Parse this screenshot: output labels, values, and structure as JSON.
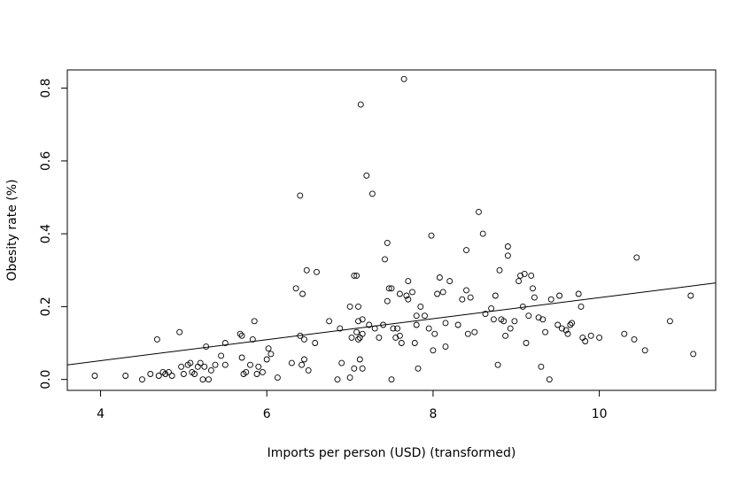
{
  "chart_data": {
    "type": "scatter",
    "title": "",
    "xlabel": "Imports per person (USD) (transformed)",
    "ylabel": "Obesity rate (%)",
    "xlim": [
      3.6,
      11.4
    ],
    "ylim": [
      -0.03,
      0.85
    ],
    "x_ticks": [
      4,
      6,
      8,
      10
    ],
    "y_ticks": [
      0.0,
      0.2,
      0.4,
      0.6,
      0.8
    ],
    "x_tick_labels": [
      "4",
      "6",
      "8",
      "10"
    ],
    "y_tick_labels": [
      "0.0",
      "0.2",
      "0.4",
      "0.6",
      "0.8"
    ],
    "grid": false,
    "legend": "none",
    "colors": {
      "points": "#000000",
      "line": "#000000",
      "frame": "#000000"
    },
    "trend_line": {
      "x": [
        3.6,
        11.4
      ],
      "y": [
        0.04,
        0.265
      ]
    },
    "points": [
      [
        3.93,
        0.01
      ],
      [
        4.3,
        0.01
      ],
      [
        4.5,
        0.0
      ],
      [
        4.6,
        0.015
      ],
      [
        4.68,
        0.11
      ],
      [
        4.7,
        0.01
      ],
      [
        4.75,
        0.02
      ],
      [
        4.78,
        0.015
      ],
      [
        4.82,
        0.02
      ],
      [
        4.86,
        0.01
      ],
      [
        4.95,
        0.13
      ],
      [
        4.97,
        0.035
      ],
      [
        5.0,
        0.015
      ],
      [
        5.05,
        0.04
      ],
      [
        5.08,
        0.045
      ],
      [
        5.1,
        0.02
      ],
      [
        5.13,
        0.015
      ],
      [
        5.17,
        0.035
      ],
      [
        5.2,
        0.045
      ],
      [
        5.23,
        0.0
      ],
      [
        5.25,
        0.035
      ],
      [
        5.27,
        0.09
      ],
      [
        5.3,
        0.0
      ],
      [
        5.33,
        0.025
      ],
      [
        5.38,
        0.04
      ],
      [
        5.45,
        0.065
      ],
      [
        5.5,
        0.1
      ],
      [
        5.5,
        0.04
      ],
      [
        5.68,
        0.125
      ],
      [
        5.7,
        0.06
      ],
      [
        5.7,
        0.12
      ],
      [
        5.72,
        0.015
      ],
      [
        5.75,
        0.02
      ],
      [
        5.8,
        0.04
      ],
      [
        5.83,
        0.11
      ],
      [
        5.85,
        0.16
      ],
      [
        5.88,
        0.015
      ],
      [
        5.9,
        0.035
      ],
      [
        5.95,
        0.02
      ],
      [
        6.0,
        0.055
      ],
      [
        6.02,
        0.085
      ],
      [
        6.05,
        0.07
      ],
      [
        6.13,
        0.005
      ],
      [
        6.3,
        0.045
      ],
      [
        6.35,
        0.25
      ],
      [
        6.4,
        0.505
      ],
      [
        6.4,
        0.12
      ],
      [
        6.42,
        0.04
      ],
      [
        6.43,
        0.235
      ],
      [
        6.45,
        0.11
      ],
      [
        6.45,
        0.055
      ],
      [
        6.48,
        0.3
      ],
      [
        6.5,
        0.025
      ],
      [
        6.58,
        0.1
      ],
      [
        6.6,
        0.295
      ],
      [
        6.75,
        0.16
      ],
      [
        6.85,
        0.0
      ],
      [
        6.88,
        0.14
      ],
      [
        6.9,
        0.045
      ],
      [
        7.0,
        0.005
      ],
      [
        7.0,
        0.2
      ],
      [
        7.02,
        0.115
      ],
      [
        7.05,
        0.285
      ],
      [
        7.05,
        0.03
      ],
      [
        7.08,
        0.13
      ],
      [
        7.08,
        0.285
      ],
      [
        7.1,
        0.11
      ],
      [
        7.1,
        0.2
      ],
      [
        7.1,
        0.16
      ],
      [
        7.12,
        0.055
      ],
      [
        7.12,
        0.115
      ],
      [
        7.13,
        0.755
      ],
      [
        7.15,
        0.165
      ],
      [
        7.15,
        0.125
      ],
      [
        7.15,
        0.03
      ],
      [
        7.2,
        0.56
      ],
      [
        7.23,
        0.15
      ],
      [
        7.27,
        0.51
      ],
      [
        7.3,
        0.14
      ],
      [
        7.35,
        0.115
      ],
      [
        7.4,
        0.15
      ],
      [
        7.42,
        0.33
      ],
      [
        7.45,
        0.375
      ],
      [
        7.45,
        0.215
      ],
      [
        7.47,
        0.25
      ],
      [
        7.5,
        0.25
      ],
      [
        7.5,
        0.0
      ],
      [
        7.52,
        0.14
      ],
      [
        7.55,
        0.115
      ],
      [
        7.57,
        0.14
      ],
      [
        7.6,
        0.235
      ],
      [
        7.6,
        0.12
      ],
      [
        7.62,
        0.1
      ],
      [
        7.65,
        0.825
      ],
      [
        7.68,
        0.23
      ],
      [
        7.7,
        0.27
      ],
      [
        7.7,
        0.22
      ],
      [
        7.75,
        0.24
      ],
      [
        7.78,
        0.1
      ],
      [
        7.8,
        0.175
      ],
      [
        7.8,
        0.15
      ],
      [
        7.82,
        0.03
      ],
      [
        7.85,
        0.2
      ],
      [
        7.9,
        0.175
      ],
      [
        7.95,
        0.14
      ],
      [
        7.98,
        0.395
      ],
      [
        8.0,
        0.08
      ],
      [
        8.02,
        0.125
      ],
      [
        8.05,
        0.235
      ],
      [
        8.08,
        0.28
      ],
      [
        8.12,
        0.24
      ],
      [
        8.15,
        0.155
      ],
      [
        8.15,
        0.09
      ],
      [
        8.2,
        0.27
      ],
      [
        8.3,
        0.15
      ],
      [
        8.35,
        0.22
      ],
      [
        8.4,
        0.245
      ],
      [
        8.4,
        0.355
      ],
      [
        8.42,
        0.125
      ],
      [
        8.45,
        0.225
      ],
      [
        8.5,
        0.13
      ],
      [
        8.55,
        0.46
      ],
      [
        8.6,
        0.4
      ],
      [
        8.63,
        0.18
      ],
      [
        8.7,
        0.195
      ],
      [
        8.73,
        0.165
      ],
      [
        8.75,
        0.23
      ],
      [
        8.78,
        0.04
      ],
      [
        8.8,
        0.3
      ],
      [
        8.82,
        0.165
      ],
      [
        8.85,
        0.16
      ],
      [
        8.87,
        0.12
      ],
      [
        8.9,
        0.34
      ],
      [
        8.9,
        0.365
      ],
      [
        8.93,
        0.14
      ],
      [
        8.98,
        0.16
      ],
      [
        9.03,
        0.27
      ],
      [
        9.05,
        0.285
      ],
      [
        9.08,
        0.2
      ],
      [
        9.1,
        0.29
      ],
      [
        9.12,
        0.1
      ],
      [
        9.15,
        0.175
      ],
      [
        9.18,
        0.285
      ],
      [
        9.2,
        0.25
      ],
      [
        9.22,
        0.225
      ],
      [
        9.27,
        0.17
      ],
      [
        9.3,
        0.035
      ],
      [
        9.32,
        0.165
      ],
      [
        9.35,
        0.13
      ],
      [
        9.4,
        0.0
      ],
      [
        9.42,
        0.22
      ],
      [
        9.5,
        0.15
      ],
      [
        9.52,
        0.23
      ],
      [
        9.55,
        0.14
      ],
      [
        9.6,
        0.135
      ],
      [
        9.62,
        0.125
      ],
      [
        9.65,
        0.15
      ],
      [
        9.67,
        0.155
      ],
      [
        9.75,
        0.235
      ],
      [
        9.78,
        0.2
      ],
      [
        9.8,
        0.115
      ],
      [
        9.83,
        0.105
      ],
      [
        9.9,
        0.12
      ],
      [
        10.0,
        0.115
      ],
      [
        10.3,
        0.125
      ],
      [
        10.42,
        0.11
      ],
      [
        10.45,
        0.335
      ],
      [
        10.55,
        0.08
      ],
      [
        10.85,
        0.16
      ],
      [
        11.1,
        0.23
      ],
      [
        11.13,
        0.07
      ]
    ]
  }
}
